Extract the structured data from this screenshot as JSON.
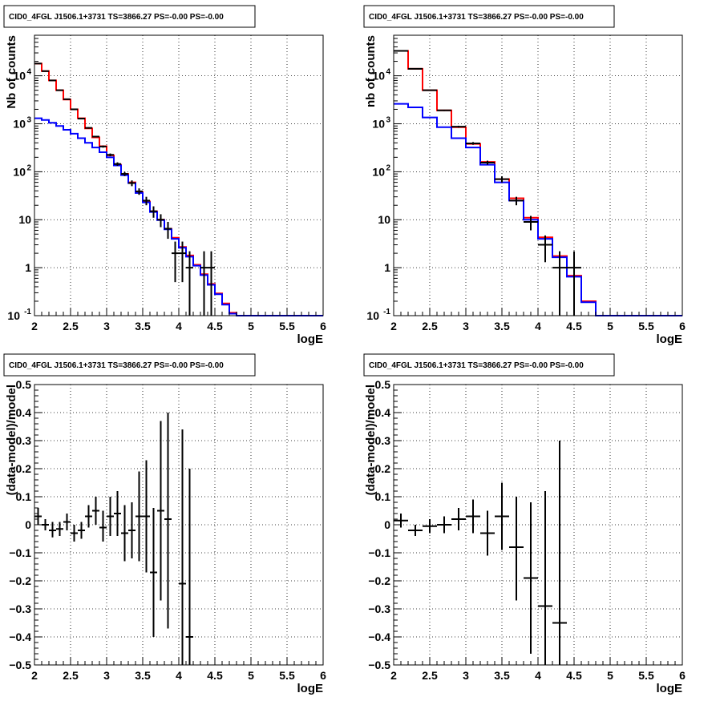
{
  "chart_data": [
    {
      "type": "line",
      "title": "CID0_4FGL J1506.1+3731 TS=3866.27 PS=-0.00 PS=-0.00",
      "xlabel": "logE",
      "ylabel": "Nb of counts",
      "xlim": [
        2,
        6
      ],
      "ylim": [
        0.1,
        70000
      ],
      "log_y": true,
      "grid": true,
      "x_ticks": [
        "2",
        "2.5",
        "3",
        "3.5",
        "4",
        "4.5",
        "5",
        "5.5",
        "6"
      ],
      "y_ticks": [
        {
          "v": 0.1,
          "base": "10",
          "exp": "-1"
        },
        {
          "v": 1,
          "base": "1",
          "exp": ""
        },
        {
          "v": 10,
          "base": "10",
          "exp": ""
        },
        {
          "v": 100,
          "base": "10",
          "exp": "2"
        },
        {
          "v": 1000,
          "base": "10",
          "exp": "3"
        },
        {
          "v": 10000,
          "base": "10",
          "exp": "4"
        }
      ],
      "bin_edges": [
        2.0,
        2.1,
        2.2,
        2.3,
        2.4,
        2.5,
        2.6,
        2.7,
        2.8,
        2.9,
        3.0,
        3.1,
        3.2,
        3.3,
        3.4,
        3.5,
        3.6,
        3.7,
        3.8,
        3.9,
        4.0,
        4.1,
        4.2,
        4.3,
        4.4,
        4.5,
        4.6,
        4.7,
        4.8,
        4.9,
        5.0,
        5.1,
        5.2,
        5.3,
        5.4,
        5.5,
        5.6,
        5.7,
        5.8,
        5.9,
        6.0
      ],
      "series": [
        {
          "color": "#ff0000",
          "values": [
            18000,
            12500,
            8000,
            5000,
            3200,
            2000,
            1300,
            800,
            520,
            340,
            220,
            140,
            90,
            60,
            38,
            24,
            15,
            10,
            6.5,
            4.2,
            2.7,
            1.8,
            1.15,
            0.73,
            0.46,
            0.29,
            0.18,
            0.115,
            0.1,
            0.1,
            0.1,
            0.1,
            0.1,
            0.1,
            0.1,
            0.1,
            0.1,
            0.1,
            0.1,
            0.1
          ]
        },
        {
          "color": "#0000ff",
          "values": [
            1300,
            1200,
            1050,
            900,
            750,
            620,
            500,
            400,
            320,
            255,
            200,
            135,
            85,
            58,
            36,
            23,
            14.5,
            9.8,
            6.3,
            4.0,
            2.6,
            1.7,
            1.1,
            0.7,
            0.44,
            0.28,
            0.17,
            0.11,
            0.1,
            0.1,
            0.1,
            0.1,
            0.1,
            0.1,
            0.1,
            0.1,
            0.1,
            0.1,
            0.1,
            0.1
          ]
        }
      ],
      "data_points": [
        {
          "x": 2.05,
          "y": 18000,
          "xe": 0.05,
          "lo": 17800,
          "hi": 18200
        },
        {
          "x": 2.15,
          "y": 12500,
          "xe": 0.05,
          "lo": 12300,
          "hi": 12700
        },
        {
          "x": 2.25,
          "y": 8000,
          "xe": 0.05,
          "lo": 7850,
          "hi": 8150
        },
        {
          "x": 2.35,
          "y": 5000,
          "xe": 0.05,
          "lo": 4850,
          "hi": 5150
        },
        {
          "x": 2.45,
          "y": 3250,
          "xe": 0.05,
          "lo": 3150,
          "hi": 3350
        },
        {
          "x": 2.55,
          "y": 2000,
          "xe": 0.05,
          "lo": 1930,
          "hi": 2070
        },
        {
          "x": 2.65,
          "y": 1280,
          "xe": 0.05,
          "lo": 1240,
          "hi": 1320
        },
        {
          "x": 2.75,
          "y": 820,
          "xe": 0.05,
          "lo": 790,
          "hi": 850
        },
        {
          "x": 2.85,
          "y": 540,
          "xe": 0.05,
          "lo": 520,
          "hi": 560
        },
        {
          "x": 2.95,
          "y": 335,
          "xe": 0.05,
          "lo": 318,
          "hi": 352
        },
        {
          "x": 3.05,
          "y": 225,
          "xe": 0.05,
          "lo": 210,
          "hi": 240
        },
        {
          "x": 3.15,
          "y": 145,
          "xe": 0.05,
          "lo": 133,
          "hi": 157
        },
        {
          "x": 3.25,
          "y": 90,
          "xe": 0.05,
          "lo": 81,
          "hi": 99
        },
        {
          "x": 3.35,
          "y": 58,
          "xe": 0.05,
          "lo": 50,
          "hi": 66
        },
        {
          "x": 3.45,
          "y": 39,
          "xe": 0.05,
          "lo": 33,
          "hi": 45
        },
        {
          "x": 3.55,
          "y": 25,
          "xe": 0.05,
          "lo": 20,
          "hi": 30
        },
        {
          "x": 3.65,
          "y": 15,
          "xe": 0.05,
          "lo": 11,
          "hi": 19
        },
        {
          "x": 3.75,
          "y": 10,
          "xe": 0.05,
          "lo": 7,
          "hi": 13
        },
        {
          "x": 3.85,
          "y": 6.5,
          "xe": 0.05,
          "lo": 4,
          "hi": 9
        },
        {
          "x": 3.95,
          "y": 2,
          "xe": 0.05,
          "lo": 0.5,
          "hi": 3.5
        },
        {
          "x": 4.05,
          "y": 2,
          "xe": 0.05,
          "lo": 0.5,
          "hi": 3.5
        },
        {
          "x": 4.15,
          "y": 1,
          "xe": 0.05,
          "lo": 0.1,
          "hi": 2.2
        },
        {
          "x": 4.35,
          "y": 1,
          "xe": 0.05,
          "lo": 0.1,
          "hi": 2.2
        },
        {
          "x": 4.45,
          "y": 1,
          "xe": 0.05,
          "lo": 0.1,
          "hi": 2.2
        }
      ]
    },
    {
      "type": "line",
      "title": "CID0_4FGL J1506.1+3731 TS=3866.27 PS=-0.00 PS=-0.00",
      "xlabel": "logE",
      "ylabel": "nb of counts",
      "xlim": [
        2,
        6
      ],
      "ylim": [
        0.1,
        70000
      ],
      "log_y": true,
      "grid": true,
      "x_ticks": [
        "2",
        "2.5",
        "3",
        "3.5",
        "4",
        "4.5",
        "5",
        "5.5",
        "6"
      ],
      "y_ticks": [
        {
          "v": 0.1,
          "base": "10",
          "exp": "-1"
        },
        {
          "v": 1,
          "base": "1",
          "exp": ""
        },
        {
          "v": 10,
          "base": "10",
          "exp": ""
        },
        {
          "v": 100,
          "base": "10",
          "exp": "2"
        },
        {
          "v": 1000,
          "base": "10",
          "exp": "3"
        },
        {
          "v": 10000,
          "base": "10",
          "exp": "4"
        }
      ],
      "bin_edges": [
        2.0,
        2.2,
        2.4,
        2.6,
        2.8,
        3.0,
        3.2,
        3.4,
        3.6,
        3.8,
        4.0,
        4.2,
        4.4,
        4.6,
        4.8,
        5.0,
        5.2,
        5.4,
        5.6,
        5.8,
        6.0
      ],
      "series": [
        {
          "color": "#ff0000",
          "values": [
            33000,
            14000,
            5000,
            1900,
            850,
            380,
            160,
            70,
            28,
            11,
            4.3,
            1.75,
            0.68,
            0.2,
            0.1,
            0.1,
            0.1,
            0.1,
            0.1,
            0.1
          ]
        },
        {
          "color": "#0000ff",
          "values": [
            2600,
            2200,
            1350,
            850,
            500,
            320,
            140,
            60,
            25,
            10,
            4.0,
            1.65,
            0.65,
            0.19,
            0.1,
            0.1,
            0.1,
            0.1,
            0.1,
            0.1
          ]
        }
      ],
      "data_points": [
        {
          "x": 2.1,
          "y": 33000,
          "xe": 0.1,
          "lo": 32700,
          "hi": 33300
        },
        {
          "x": 2.3,
          "y": 14000,
          "xe": 0.1,
          "lo": 13800,
          "hi": 14200
        },
        {
          "x": 2.5,
          "y": 5000,
          "xe": 0.1,
          "lo": 4880,
          "hi": 5120
        },
        {
          "x": 2.7,
          "y": 1900,
          "xe": 0.1,
          "lo": 1840,
          "hi": 1960
        },
        {
          "x": 2.9,
          "y": 870,
          "xe": 0.1,
          "lo": 830,
          "hi": 910
        },
        {
          "x": 3.1,
          "y": 390,
          "xe": 0.1,
          "lo": 365,
          "hi": 415
        },
        {
          "x": 3.3,
          "y": 155,
          "xe": 0.1,
          "lo": 140,
          "hi": 170
        },
        {
          "x": 3.5,
          "y": 70,
          "xe": 0.1,
          "lo": 60,
          "hi": 80
        },
        {
          "x": 3.7,
          "y": 25,
          "xe": 0.1,
          "lo": 20,
          "hi": 30
        },
        {
          "x": 3.9,
          "y": 9,
          "xe": 0.1,
          "lo": 6,
          "hi": 12
        },
        {
          "x": 4.1,
          "y": 3,
          "xe": 0.1,
          "lo": 1.3,
          "hi": 4.7
        },
        {
          "x": 4.3,
          "y": 1,
          "xe": 0.1,
          "lo": 0.1,
          "hi": 2.2
        },
        {
          "x": 4.5,
          "y": 1,
          "xe": 0.1,
          "lo": 0.1,
          "hi": 2.2
        }
      ]
    },
    {
      "type": "scatter",
      "title": "CID0_4FGL J1506.1+3731 TS=3866.27 PS=-0.00 PS=-0.00",
      "xlabel": "logE",
      "ylabel": "(data-model)/model",
      "xlim": [
        2,
        6
      ],
      "ylim": [
        -0.5,
        0.5
      ],
      "log_y": false,
      "grid": true,
      "x_ticks": [
        "2",
        "2.5",
        "3",
        "3.5",
        "4",
        "4.5",
        "5",
        "5.5",
        "6"
      ],
      "y_ticks": [
        {
          "v": -0.5,
          "label": "−0.5"
        },
        {
          "v": -0.4,
          "label": "−0.4"
        },
        {
          "v": -0.3,
          "label": "−0.3"
        },
        {
          "v": -0.2,
          "label": "−0.2"
        },
        {
          "v": -0.1,
          "label": "−0.1"
        },
        {
          "v": 0,
          "label": "0"
        },
        {
          "v": 0.1,
          "label": "0.1"
        },
        {
          "v": 0.2,
          "label": "0.2"
        },
        {
          "v": 0.3,
          "label": "0.3"
        },
        {
          "v": 0.4,
          "label": "0.4"
        },
        {
          "v": 0.5,
          "label": "0.5"
        }
      ],
      "data_points": [
        {
          "x": 2.05,
          "y": 0.03,
          "xe": 0.05,
          "lo": 0.0,
          "hi": 0.06
        },
        {
          "x": 2.15,
          "y": 0.0,
          "xe": 0.05,
          "lo": -0.02,
          "hi": 0.02
        },
        {
          "x": 2.25,
          "y": -0.02,
          "xe": 0.05,
          "lo": -0.045,
          "hi": 0.01
        },
        {
          "x": 2.35,
          "y": -0.015,
          "xe": 0.05,
          "lo": -0.04,
          "hi": 0.01
        },
        {
          "x": 2.45,
          "y": 0.01,
          "xe": 0.05,
          "lo": -0.02,
          "hi": 0.04
        },
        {
          "x": 2.55,
          "y": -0.03,
          "xe": 0.05,
          "lo": -0.06,
          "hi": 0.0
        },
        {
          "x": 2.65,
          "y": -0.02,
          "xe": 0.05,
          "lo": -0.05,
          "hi": 0.01
        },
        {
          "x": 2.75,
          "y": 0.03,
          "xe": 0.05,
          "lo": -0.01,
          "hi": 0.07
        },
        {
          "x": 2.85,
          "y": 0.05,
          "xe": 0.05,
          "lo": 0.0,
          "hi": 0.1
        },
        {
          "x": 2.95,
          "y": -0.01,
          "xe": 0.05,
          "lo": -0.06,
          "hi": 0.05
        },
        {
          "x": 3.05,
          "y": 0.03,
          "xe": 0.05,
          "lo": -0.04,
          "hi": 0.1
        },
        {
          "x": 3.15,
          "y": 0.04,
          "xe": 0.05,
          "lo": -0.04,
          "hi": 0.12
        },
        {
          "x": 3.25,
          "y": -0.03,
          "xe": 0.05,
          "lo": -0.13,
          "hi": 0.07
        },
        {
          "x": 3.35,
          "y": -0.02,
          "xe": 0.05,
          "lo": -0.12,
          "hi": 0.08
        },
        {
          "x": 3.45,
          "y": 0.03,
          "xe": 0.05,
          "lo": -0.13,
          "hi": 0.19
        },
        {
          "x": 3.55,
          "y": 0.03,
          "xe": 0.05,
          "lo": -0.17,
          "hi": 0.23
        },
        {
          "x": 3.65,
          "y": -0.17,
          "xe": 0.05,
          "lo": -0.4,
          "hi": 0.06
        },
        {
          "x": 3.75,
          "y": 0.05,
          "xe": 0.05,
          "lo": -0.27,
          "hi": 0.37
        },
        {
          "x": 3.85,
          "y": 0.02,
          "xe": 0.05,
          "lo": -0.37,
          "hi": 0.4
        },
        {
          "x": 4.05,
          "y": -0.21,
          "xe": 0.05,
          "lo": -0.5,
          "hi": 0.34
        },
        {
          "x": 4.15,
          "y": -0.4,
          "xe": 0.05,
          "lo": -0.5,
          "hi": 0.2
        }
      ]
    },
    {
      "type": "scatter",
      "title": "CID0_4FGL J1506.1+3731 TS=3866.27 PS=-0.00 PS=-0.00",
      "xlabel": "logE",
      "ylabel": "(data-model)/model",
      "xlim": [
        2,
        6
      ],
      "ylim": [
        -0.5,
        0.5
      ],
      "log_y": false,
      "grid": true,
      "x_ticks": [
        "2",
        "2.5",
        "3",
        "3.5",
        "4",
        "4.5",
        "5",
        "5.5",
        "6"
      ],
      "y_ticks": [
        {
          "v": -0.5,
          "label": "−0.5"
        },
        {
          "v": -0.4,
          "label": "−0.4"
        },
        {
          "v": -0.3,
          "label": "−0.3"
        },
        {
          "v": -0.2,
          "label": "−0.2"
        },
        {
          "v": -0.1,
          "label": "−0.1"
        },
        {
          "v": 0,
          "label": "0"
        },
        {
          "v": 0.1,
          "label": "0.1"
        },
        {
          "v": 0.2,
          "label": "0.2"
        },
        {
          "v": 0.3,
          "label": "0.3"
        },
        {
          "v": 0.4,
          "label": "0.4"
        },
        {
          "v": 0.5,
          "label": "0.5"
        }
      ],
      "data_points": [
        {
          "x": 2.1,
          "y": 0.015,
          "xe": 0.1,
          "lo": -0.01,
          "hi": 0.04
        },
        {
          "x": 2.3,
          "y": -0.02,
          "xe": 0.1,
          "lo": -0.04,
          "hi": 0.0
        },
        {
          "x": 2.5,
          "y": -0.005,
          "xe": 0.1,
          "lo": -0.03,
          "hi": 0.02
        },
        {
          "x": 2.7,
          "y": 0.0,
          "xe": 0.1,
          "lo": -0.03,
          "hi": 0.03
        },
        {
          "x": 2.9,
          "y": 0.02,
          "xe": 0.1,
          "lo": -0.02,
          "hi": 0.06
        },
        {
          "x": 3.1,
          "y": 0.03,
          "xe": 0.1,
          "lo": -0.03,
          "hi": 0.09
        },
        {
          "x": 3.3,
          "y": -0.03,
          "xe": 0.1,
          "lo": -0.11,
          "hi": 0.05
        },
        {
          "x": 3.5,
          "y": 0.03,
          "xe": 0.1,
          "lo": -0.09,
          "hi": 0.15
        },
        {
          "x": 3.7,
          "y": -0.08,
          "xe": 0.1,
          "lo": -0.27,
          "hi": 0.1
        },
        {
          "x": 3.9,
          "y": -0.19,
          "xe": 0.1,
          "lo": -0.46,
          "hi": 0.08
        },
        {
          "x": 4.1,
          "y": -0.29,
          "xe": 0.1,
          "lo": -0.5,
          "hi": 0.12
        },
        {
          "x": 4.3,
          "y": -0.35,
          "xe": 0.1,
          "lo": -0.5,
          "hi": 0.3
        }
      ]
    }
  ]
}
